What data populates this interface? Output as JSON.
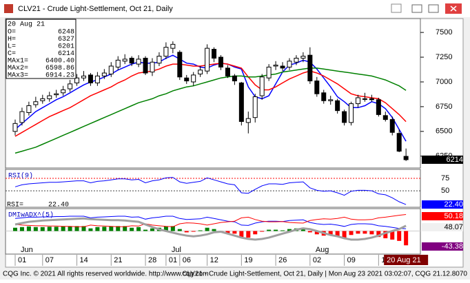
{
  "window": {
    "title": "CLV21 - Crude Light-Settlement, Oct 21, Daily",
    "status_left": "CQG Inc. © 2021 All rights reserved worldwide. http://www.cqg.com",
    "status_right": "CLV21 - Crude Light-Settlement, Oct 21, Daily | Mon Aug 23 2021 03:02:07, CQG 21.12.8070"
  },
  "info_box": {
    "date": "20 Aug 21",
    "rows": [
      {
        "label": "O=",
        "value": "6248"
      },
      {
        "label": "H=",
        "value": "6327"
      },
      {
        "label": "L=",
        "value": "6201"
      },
      {
        "label": "C=",
        "value": "6214"
      },
      {
        "label": "MAx1=",
        "value": "6400.40"
      },
      {
        "label": "MAx2=",
        "value": "6598.86"
      },
      {
        "label": "MAx3=",
        "value": "6914.23"
      }
    ]
  },
  "chart_data": [
    {
      "type": "candlestick",
      "categories": [
        "01",
        null,
        null,
        null,
        "07",
        null,
        null,
        null,
        null,
        "14",
        null,
        null,
        null,
        null,
        "21",
        null,
        null,
        null,
        null,
        "28",
        null,
        null,
        "01",
        null,
        "06",
        null,
        null,
        null,
        "12",
        null,
        null,
        null,
        null,
        "19",
        null,
        null,
        null,
        null,
        "26",
        null,
        null,
        null,
        null,
        "02",
        null,
        null,
        null,
        null,
        "09",
        null,
        null,
        null,
        null,
        "16",
        null,
        null,
        null,
        "20 Aug 21"
      ],
      "month_labels": [
        {
          "value": 0,
          "label": "Jun"
        },
        {
          "value": 22,
          "label": "Jul"
        },
        {
          "value": 43,
          "label": "Aug"
        }
      ],
      "open": [
        6500,
        6590,
        6690,
        6770,
        6810,
        6830,
        6870,
        6890,
        6930,
        6990,
        7040,
        7070,
        6990,
        7060,
        7080,
        7150,
        7210,
        7240,
        7180,
        7240,
        7100,
        7190,
        7260,
        7340,
        7300,
        7040,
        7000,
        7080,
        7110,
        7330,
        7250,
        7140,
        7060,
        6990,
        6590,
        6640,
        6860,
        7040,
        7160,
        7160,
        7150,
        7200,
        7240,
        7270,
        7010,
        6890,
        6810,
        6810,
        6700,
        6590,
        6780,
        6830,
        6830,
        6820,
        6660,
        6620,
        6480,
        6248
      ],
      "high": [
        6620,
        6740,
        6800,
        6850,
        6870,
        6900,
        6920,
        6960,
        7020,
        7080,
        7110,
        7090,
        7100,
        7130,
        7200,
        7260,
        7280,
        7260,
        7270,
        7260,
        7240,
        7300,
        7400,
        7410,
        7320,
        7070,
        7100,
        7160,
        7380,
        7350,
        7270,
        7170,
        7080,
        7000,
        6700,
        6880,
        7080,
        7180,
        7210,
        7200,
        7240,
        7270,
        7300,
        7350,
        7050,
        6920,
        6860,
        6830,
        6720,
        6800,
        6870,
        6890,
        6870,
        6840,
        6700,
        6650,
        6520,
        6327
      ],
      "low": [
        6460,
        6560,
        6660,
        6740,
        6780,
        6800,
        6840,
        6860,
        6900,
        6960,
        7010,
        6960,
        6960,
        7030,
        7050,
        7120,
        7180,
        7160,
        7150,
        7070,
        7060,
        7160,
        7230,
        7290,
        7020,
        6980,
        6960,
        7050,
        7080,
        7200,
        7120,
        7040,
        6970,
        6560,
        6480,
        6590,
        6820,
        7010,
        7120,
        7110,
        7120,
        7170,
        7200,
        6980,
        6850,
        6780,
        6770,
        6680,
        6560,
        6560,
        6740,
        6800,
        6800,
        6650,
        6600,
        6460,
        6290,
        6201
      ],
      "close": [
        6580,
        6700,
        6760,
        6800,
        6830,
        6860,
        6880,
        6920,
        6980,
        7040,
        7060,
        6990,
        7060,
        7090,
        7160,
        7220,
        7230,
        7190,
        7230,
        7090,
        7200,
        7260,
        7350,
        7380,
        7050,
        7010,
        7070,
        7120,
        7340,
        7240,
        7150,
        7060,
        7010,
        6600,
        6630,
        6850,
        7050,
        7150,
        7170,
        7140,
        7210,
        7240,
        7260,
        7010,
        6880,
        6810,
        6820,
        6710,
        6590,
        6780,
        6840,
        6830,
        6820,
        6670,
        6620,
        6490,
        6300,
        6214
      ],
      "series": [
        {
          "color": "#0000ff",
          "values": [
            6520,
            6580,
            6640,
            6700,
            6740,
            6780,
            6820,
            6850,
            6890,
            6930,
            6970,
            7000,
            7020,
            7050,
            7080,
            7120,
            7150,
            7180,
            7200,
            7190,
            7190,
            7200,
            7240,
            7270,
            7230,
            7190,
            7180,
            7150,
            7140,
            7170,
            7190,
            7180,
            7150,
            7130,
            6950,
            6850,
            6830,
            6860,
            6980,
            7100,
            7170,
            7190,
            7220,
            7200,
            7130,
            7040,
            6950,
            6850,
            6800,
            6740,
            6740,
            6760,
            6800,
            6780,
            6730,
            6640,
            6520,
            6400.4
          ]
        },
        {
          "color": "#ff0000",
          "values": [
            6450,
            6490,
            6530,
            6570,
            6610,
            6650,
            6680,
            6710,
            6740,
            6780,
            6820,
            6860,
            6890,
            6920,
            6950,
            6990,
            7020,
            7060,
            7090,
            7100,
            7110,
            7130,
            7160,
            7180,
            7180,
            7170,
            7160,
            7160,
            7170,
            7180,
            7190,
            7180,
            7160,
            7140,
            7050,
            6970,
            6920,
            6920,
            6950,
            6990,
            7030,
            7060,
            7090,
            7110,
            7090,
            7060,
            7020,
            6980,
            6930,
            6880,
            6860,
            6850,
            6840,
            6830,
            6790,
            6730,
            6670,
            6598.86
          ]
        },
        {
          "color": "#008000",
          "values": [
            6280,
            6300,
            6320,
            6340,
            6370,
            6400,
            6430,
            6460,
            6490,
            6520,
            6550,
            6580,
            6610,
            6640,
            6670,
            6700,
            6730,
            6760,
            6790,
            6810,
            6830,
            6860,
            6880,
            6910,
            6930,
            6950,
            6960,
            6980,
            7000,
            7020,
            7040,
            7050,
            7060,
            7060,
            7050,
            7050,
            7060,
            7070,
            7080,
            7100,
            7110,
            7120,
            7130,
            7140,
            7140,
            7130,
            7120,
            7110,
            7100,
            7090,
            7080,
            7070,
            7060,
            7040,
            7020,
            6990,
            6960,
            6914.23
          ]
        }
      ],
      "ylim": [
        6130,
        7640
      ],
      "yticks": [
        6250,
        6500,
        6750,
        7000,
        7250,
        7500
      ]
    },
    {
      "type": "line",
      "title": "RSI(9)",
      "color": "#0000ff",
      "values": [
        58,
        62,
        64,
        65,
        66,
        67,
        67,
        68,
        69,
        70,
        70,
        66,
        69,
        70,
        72,
        74,
        74,
        72,
        73,
        66,
        70,
        72,
        76,
        77,
        68,
        65,
        67,
        69,
        76,
        72,
        68,
        64,
        62,
        46,
        45,
        53,
        60,
        64,
        64,
        63,
        66,
        67,
        68,
        56,
        51,
        49,
        50,
        46,
        41,
        49,
        51,
        51,
        50,
        44,
        42,
        36,
        28,
        22.4
      ],
      "readout_label": "RSI=",
      "readout": "22.40",
      "hlines": [
        {
          "value": 75,
          "color": "#ff0000"
        },
        {
          "value": 50,
          "color": "#404040"
        }
      ],
      "ylim": [
        17,
        93
      ],
      "yticks": [
        50,
        75
      ]
    },
    {
      "type": "dmi",
      "title": "DMIwADX^(5)",
      "series": [
        {
          "color": "#0000ff",
          "values": [
            38,
            40,
            42,
            42,
            43,
            43,
            44,
            44,
            45,
            45,
            45,
            40,
            42,
            43,
            44,
            45,
            45,
            42,
            43,
            36,
            40,
            42,
            45,
            45,
            38,
            35,
            36,
            37,
            42,
            38,
            34,
            30,
            28,
            18,
            17,
            24,
            28,
            30,
            30,
            29,
            32,
            33,
            34,
            26,
            22,
            20,
            21,
            18,
            14,
            20,
            22,
            22,
            21,
            16,
            14,
            11,
            8,
            6.8
          ]
        },
        {
          "color": "#ff0000",
          "values": [
            20,
            18,
            17,
            16,
            16,
            15,
            15,
            14,
            14,
            13,
            13,
            18,
            16,
            15,
            14,
            13,
            13,
            16,
            15,
            22,
            18,
            16,
            14,
            13,
            22,
            25,
            24,
            22,
            18,
            22,
            26,
            28,
            30,
            40,
            42,
            35,
            30,
            28,
            28,
            29,
            26,
            25,
            24,
            32,
            35,
            37,
            36,
            38,
            42,
            36,
            34,
            34,
            35,
            40,
            42,
            45,
            48,
            50.18
          ]
        }
      ],
      "adx": {
        "color": "#a0a0a0",
        "values": [
          20,
          24,
          28,
          30,
          32,
          33,
          34,
          35,
          36,
          37,
          38,
          36,
          35,
          34,
          33,
          33,
          32,
          30,
          28,
          20,
          12,
          5,
          0,
          -5,
          -10,
          -14,
          -16,
          -14,
          -10,
          -4,
          -2,
          -8,
          -14,
          -20,
          -24,
          -26,
          -24,
          -20,
          -14,
          -8,
          -2,
          4,
          8,
          6,
          0,
          -6,
          -12,
          -16,
          -22,
          -26,
          -26,
          -24,
          -20,
          -14,
          -6,
          0,
          6,
          16
        ]
      },
      "histogram": {
        "up_color": "#008000",
        "down_color": "#ff0000",
        "values": [
          10,
          12,
          14,
          12,
          12,
          13,
          13,
          14,
          14,
          15,
          15,
          8,
          12,
          13,
          14,
          15,
          15,
          10,
          12,
          4,
          8,
          10,
          14,
          15,
          6,
          -4,
          -2,
          2,
          10,
          6,
          -2,
          -6,
          -8,
          -18,
          -20,
          -10,
          -2,
          4,
          4,
          2,
          6,
          8,
          10,
          -4,
          -10,
          -14,
          -12,
          -16,
          -20,
          -12,
          -8,
          -8,
          -10,
          -18,
          -22,
          -26,
          -30,
          -43.38
        ]
      },
      "readouts": [
        {
          "text": "50.18",
          "bg": "#ff0000",
          "color": "#ffffff"
        },
        {
          "text": "48.07",
          "bg": "#f0f0f0",
          "color": "#000000"
        },
        {
          "text": "-43.38",
          "bg": "#800080",
          "color": "#ffffff"
        }
      ],
      "ylim": [
        -70,
        68
      ]
    }
  ]
}
